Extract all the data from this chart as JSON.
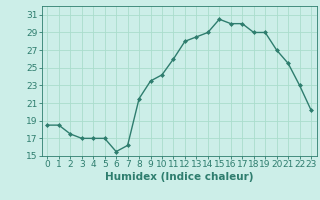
{
  "x": [
    0,
    1,
    2,
    3,
    4,
    5,
    6,
    7,
    8,
    9,
    10,
    11,
    12,
    13,
    14,
    15,
    16,
    17,
    18,
    19,
    20,
    21,
    22,
    23
  ],
  "y": [
    18.5,
    18.5,
    17.5,
    17.0,
    17.0,
    17.0,
    15.5,
    16.2,
    21.5,
    23.5,
    24.2,
    26.0,
    28.0,
    28.5,
    29.0,
    30.5,
    30.0,
    30.0,
    29.0,
    29.0,
    27.0,
    25.5,
    23.0,
    20.2
  ],
  "line_color": "#2e7d6e",
  "marker": "D",
  "marker_size": 2.0,
  "bg_color": "#cceee8",
  "grid_color": "#aaddcc",
  "xlabel": "Humidex (Indice chaleur)",
  "ylim": [
    15,
    32
  ],
  "yticks": [
    15,
    17,
    19,
    21,
    23,
    25,
    27,
    29,
    31
  ],
  "xlim": [
    -0.5,
    23.5
  ],
  "xticks": [
    0,
    1,
    2,
    3,
    4,
    5,
    6,
    7,
    8,
    9,
    10,
    11,
    12,
    13,
    14,
    15,
    16,
    17,
    18,
    19,
    20,
    21,
    22,
    23
  ],
  "xlabel_fontsize": 7.5,
  "tick_fontsize": 6.5,
  "axes_color": "#2e7d6e",
  "linewidth": 1.0
}
